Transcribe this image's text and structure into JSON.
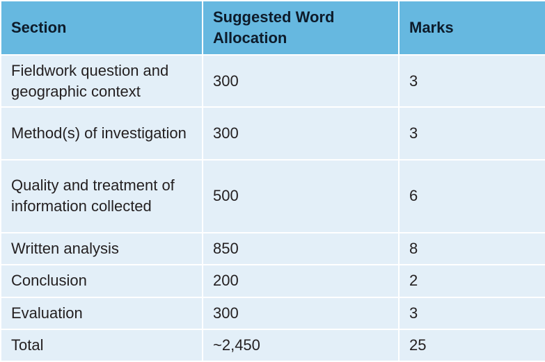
{
  "table": {
    "headers": [
      "Section",
      "Suggested Word Allocation",
      "Marks"
    ],
    "rows": [
      {
        "section": "Fieldwork question and geographic context",
        "words": "300",
        "marks": "3"
      },
      {
        "section": "Method(s) of investigation",
        "words": "300",
        "marks": "3"
      },
      {
        "section": "Quality and treatment of information collected",
        "words": "500",
        "marks": "6"
      },
      {
        "section": "Written analysis",
        "words": "850",
        "marks": "8"
      },
      {
        "section": "Conclusion",
        "words": "200",
        "marks": "2"
      },
      {
        "section": "Evaluation",
        "words": "300",
        "marks": "3"
      },
      {
        "section": "Total",
        "words": "~2,450",
        "marks": "25"
      }
    ]
  },
  "colors": {
    "header_bg": "#66b8e0",
    "cell_bg": "#e3eff8",
    "grid_lines": "#ffffff"
  }
}
